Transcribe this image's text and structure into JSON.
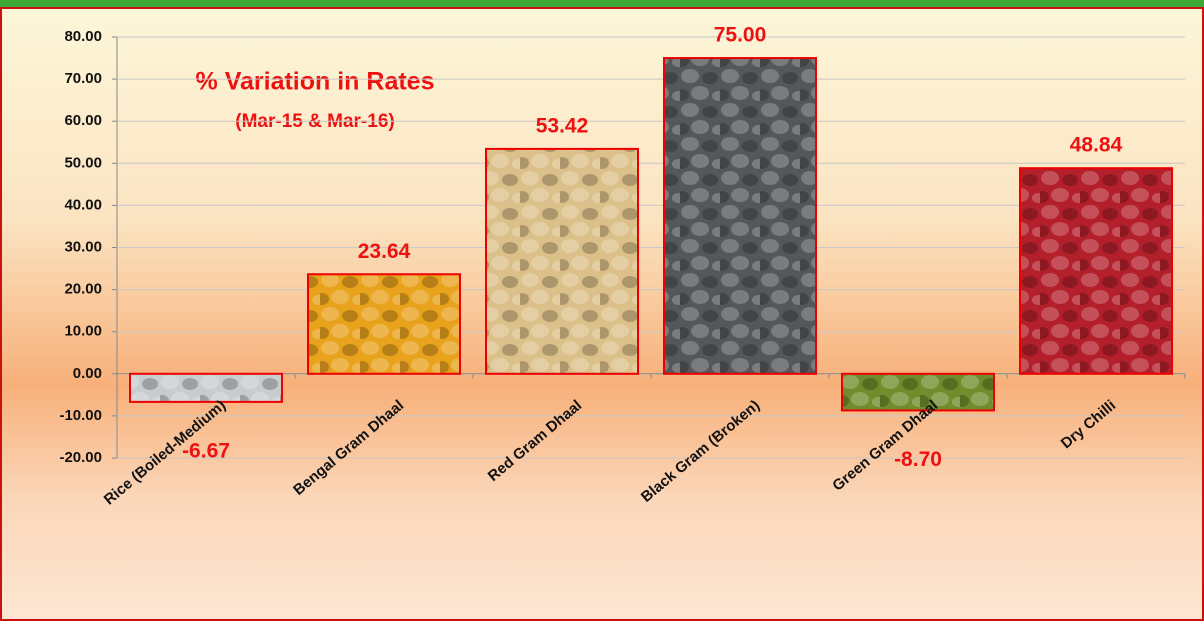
{
  "chart_data": {
    "type": "bar",
    "title": "% Variation in Rates",
    "subtitle": "(Mar-15 & Mar-16)",
    "categories": [
      "Rice (Boiled-Medium)",
      "Bengal Gram Dhaal",
      "Red Gram Dhaal",
      "Black Gram (Broken)",
      "Green Gram Dhaal",
      "Dry Chilli"
    ],
    "values": [
      -6.67,
      23.64,
      53.42,
      75,
      -8.7,
      48.84
    ],
    "value_labels": [
      "-6.67",
      "23.64",
      "53.42",
      "75.00",
      "-8.70",
      "48.84"
    ],
    "colors": [
      "#c9ccce",
      "#e8a21c",
      "#dcc08a",
      "#55575a",
      "#6f8d2c",
      "#b3202c"
    ],
    "ylim": [
      -20,
      80
    ],
    "yticks": [
      {
        "value": -20,
        "label": "-20.00"
      },
      {
        "value": -10,
        "label": "-10.00"
      },
      {
        "value": 0,
        "label": "0.00"
      },
      {
        "value": 10,
        "label": "10.00"
      },
      {
        "value": 20,
        "label": "20.00"
      },
      {
        "value": 30,
        "label": "30.00"
      },
      {
        "value": 40,
        "label": "40.00"
      },
      {
        "value": 50,
        "label": "50.00"
      },
      {
        "value": 60,
        "label": "60.00"
      },
      {
        "value": 70,
        "label": "70.00"
      },
      {
        "value": 80,
        "label": "80.00"
      }
    ],
    "grid": true
  }
}
